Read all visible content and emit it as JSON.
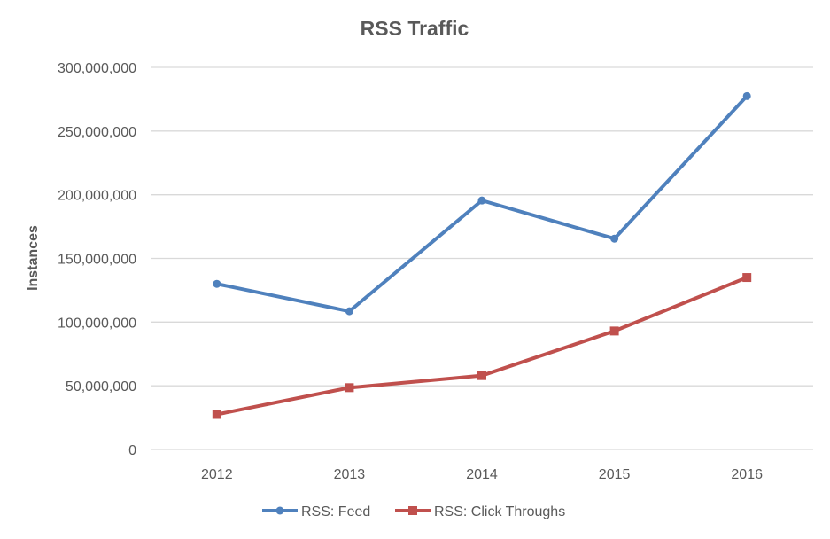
{
  "chart_data": {
    "type": "line",
    "title": "RSS Traffic",
    "xlabel": "",
    "ylabel": "Instances",
    "categories": [
      "2012",
      "2013",
      "2014",
      "2015",
      "2016"
    ],
    "ylim": [
      0,
      300000000
    ],
    "yticks": [
      0,
      50000000,
      100000000,
      150000000,
      200000000,
      250000000,
      300000000
    ],
    "ytick_labels": [
      "0",
      "50,000,000",
      "100,000,000",
      "150,000,000",
      "200,000,000",
      "250,000,000",
      "300,000,000"
    ],
    "grid": true,
    "legend_position": "bottom",
    "series": [
      {
        "name": "RSS: Feed",
        "color": "#4f81bd",
        "marker": "circle",
        "values": [
          130000000,
          108500000,
          195500000,
          165500000,
          277500000
        ]
      },
      {
        "name": "RSS: Click Throughs",
        "color": "#c0504d",
        "marker": "square",
        "values": [
          27500000,
          48500000,
          58000000,
          93000000,
          135000000
        ]
      }
    ]
  }
}
